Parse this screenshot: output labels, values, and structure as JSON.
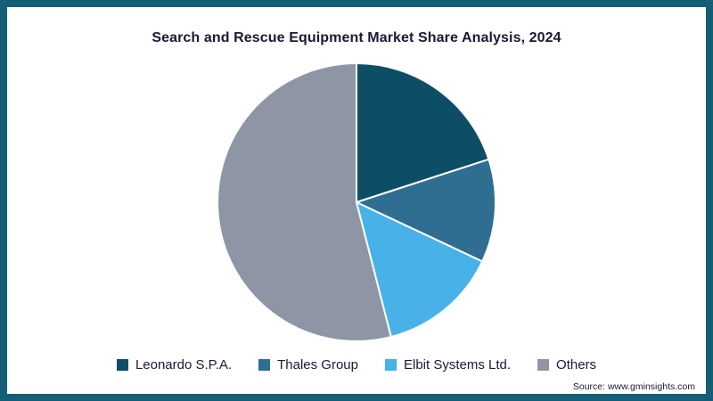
{
  "frame": {
    "border_color": "#145e78",
    "background": "#ffffff"
  },
  "title": "Search and Rescue Equipment Market Share Analysis, 2024",
  "source": "Source: www.gminsights.com",
  "chart_data": {
    "type": "pie",
    "title": "Search and Rescue Equipment Market Share Analysis, 2024",
    "labels": [
      "Leonardo S.P.A.",
      "Thales Group",
      "Elbit Systems Ltd.",
      "Others"
    ],
    "values": [
      20,
      12,
      14,
      54
    ],
    "unit": "percent",
    "colors": [
      "#0d4e66",
      "#2f6e90",
      "#47b1e8",
      "#8e96a6"
    ],
    "start_angle_deg": 0,
    "direction": "clockwise",
    "slice_separator_color": "#ffffff",
    "legend_position": "bottom",
    "source": "Source: www.gminsights.com"
  }
}
